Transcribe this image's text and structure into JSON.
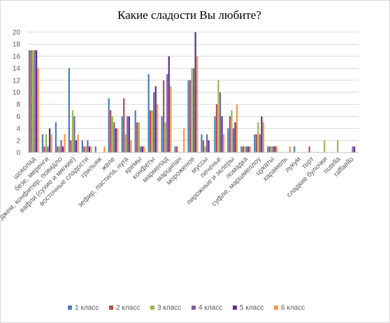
{
  "chart_data": {
    "type": "bar",
    "title": "Какие сладости Вы любите?",
    "xlabel": "",
    "ylabel": "",
    "ylim": [
      0,
      20
    ],
    "yticks": [
      0,
      2,
      4,
      6,
      8,
      10,
      12,
      14,
      16,
      18,
      20
    ],
    "grid": true,
    "legend_position": "bottom",
    "categories": [
      "шоколад",
      "безе, меренги",
      "джем, конфитюр, повидло",
      "вафли (сухие и мягкие)",
      "восточные сладости",
      "грильяж",
      "желе",
      "зефир, пастила, нуга",
      "кремы",
      "конфеты",
      "мармелад",
      "марципан",
      "мороженое",
      "муссы",
      "печенье",
      "пирожные и эклеры",
      "помадка",
      "суфле, маршмеллоу",
      "цукаты",
      "карамель",
      "лукум",
      "торт",
      "сладкие булочки",
      "nutella",
      "raffaello"
    ],
    "series": [
      {
        "name": "1 класс",
        "color": "#4a7ebb",
        "values": [
          17,
          3,
          5,
          14,
          2,
          1,
          9,
          6,
          7,
          13,
          6,
          1,
          12,
          3,
          6,
          4,
          1,
          3,
          1,
          0,
          1,
          0,
          0,
          0,
          0
        ]
      },
      {
        "name": "2 класс",
        "color": "#be4b48",
        "values": [
          17,
          1,
          1,
          2,
          1,
          0,
          7,
          9,
          5,
          7,
          12,
          1,
          12,
          2,
          8,
          6,
          1,
          3,
          1,
          0,
          0,
          1,
          0,
          0,
          0
        ]
      },
      {
        "name": "3 класс",
        "color": "#98b954",
        "values": [
          17,
          3,
          1,
          7,
          1,
          0,
          6,
          3,
          5,
          7,
          5,
          0,
          14,
          1,
          12,
          7,
          1,
          5,
          1,
          0,
          0,
          0,
          2,
          2,
          0
        ]
      },
      {
        "name": "4 класс",
        "color": "#7d60a0",
        "values": [
          17,
          1,
          2,
          6,
          2,
          0,
          5,
          6,
          1,
          10,
          13,
          0,
          14,
          3,
          10,
          4,
          1,
          3,
          1,
          0,
          0,
          0,
          0,
          0,
          1
        ]
      },
      {
        "name": "5 класс",
        "color": "#5c2d91",
        "values": [
          17,
          4,
          1,
          2,
          1,
          0,
          4,
          6,
          1,
          11,
          16,
          0,
          20,
          2,
          6,
          5,
          1,
          6,
          1,
          0,
          0,
          0,
          0,
          0,
          1
        ]
      },
      {
        "name": "6 класс",
        "color": "#f79646",
        "values": [
          14,
          3,
          3,
          3,
          1,
          1,
          4,
          2,
          1,
          8,
          11,
          4,
          16,
          0,
          3,
          8,
          1,
          5,
          1,
          1,
          0,
          0,
          0,
          0,
          0
        ]
      }
    ]
  }
}
